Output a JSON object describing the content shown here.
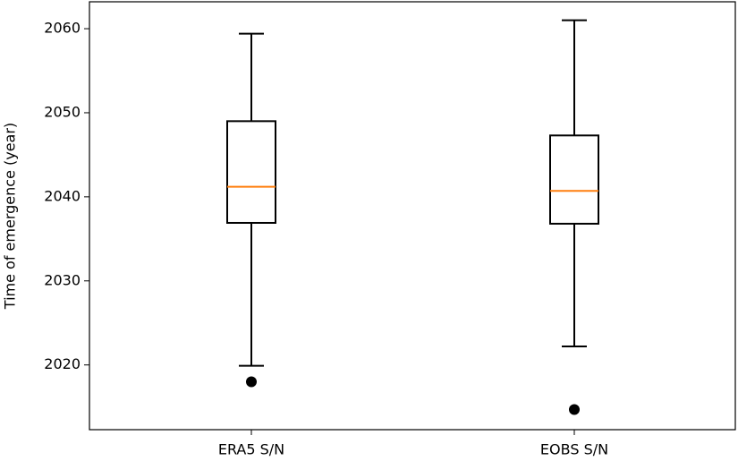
{
  "chart_data": {
    "type": "box",
    "ylabel": "Time of emergence (year)",
    "categories": [
      "ERA5 S/N",
      "EOBS S/N"
    ],
    "boxes": [
      {
        "whislo": 2019.9,
        "q1": 2036.9,
        "med": 2041.2,
        "q3": 2049.0,
        "whishi": 2059.4,
        "fliers": [
          2018.0
        ]
      },
      {
        "whislo": 2022.2,
        "q1": 2036.8,
        "med": 2040.7,
        "q3": 2047.3,
        "whishi": 2061.0,
        "fliers": [
          2014.7
        ]
      }
    ],
    "box_color": "#000000",
    "median_color": "#ff7f0e",
    "flier_color": "#000000",
    "ylim": [
      2012.3,
      2063.2
    ],
    "yticks": [
      2020,
      2030,
      2040,
      2050,
      2060
    ]
  }
}
